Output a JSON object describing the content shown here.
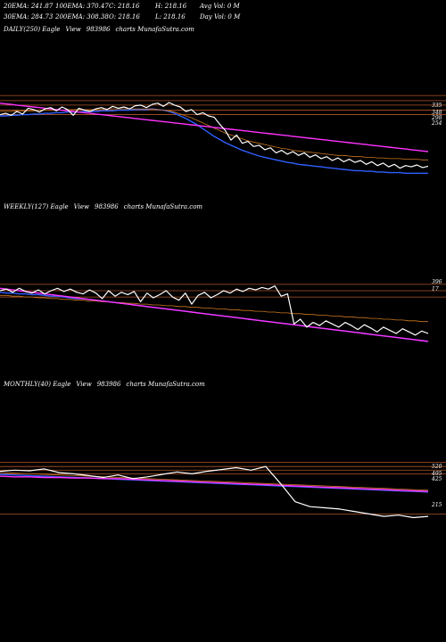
{
  "header": {
    "row1": [
      "20EMA: 241.87",
      "100EMA: 370.47",
      "C: 218.16",
      "H: 218.16",
      "Avg Vol: 0  M"
    ],
    "row2": [
      "30EMA: 284.73",
      "200EMA: 308.38",
      "O: 218.16",
      "L: 218.16",
      "Day Vol: 0  M"
    ]
  },
  "colors": {
    "price": "#ffffff",
    "ema_short": "#3060ff",
    "ema_mid": "#cc7722",
    "ema_long": "#ff33ff",
    "level": "#b0562a"
  },
  "chart_data": [
    {
      "type": "line",
      "title_parts": [
        "DAILY(250) Eagle",
        "View",
        "983986",
        "charts MunafaSutra.com"
      ],
      "y_labels": [
        "335",
        "348",
        "298",
        "254"
      ],
      "series": [
        {
          "values": [
            400,
            402,
            399,
            405,
            401,
            410,
            408,
            404,
            409,
            411,
            406,
            412,
            408,
            399,
            410,
            407,
            405,
            409,
            411,
            408,
            413,
            410,
            412,
            409,
            414,
            415,
            411,
            416,
            418,
            413,
            419,
            415,
            412,
            405,
            408,
            400,
            403,
            398,
            396,
            385,
            375,
            360,
            368,
            355,
            358,
            350,
            352,
            345,
            348,
            340,
            344,
            338,
            342,
            336,
            340,
            333,
            337,
            331,
            334,
            328,
            332,
            326,
            330,
            325,
            328,
            322,
            326,
            320,
            324,
            318,
            322,
            316,
            320,
            318,
            321,
            317,
            319
          ]
        },
        {
          "values": [
            398,
            398,
            399,
            399,
            400,
            400,
            401,
            401,
            402,
            402,
            403,
            403,
            404,
            404,
            404,
            405,
            405,
            405,
            406,
            406,
            406,
            407,
            407,
            407,
            408,
            408,
            408,
            409,
            408,
            407,
            405,
            402,
            398,
            394,
            389,
            384,
            378,
            372,
            366,
            361,
            356,
            352,
            348,
            344,
            341,
            338,
            335,
            333,
            331,
            329,
            327,
            325,
            324,
            322,
            321,
            320,
            319,
            318,
            317,
            316,
            315,
            314,
            313,
            312,
            312,
            311,
            311,
            310,
            310,
            309,
            309,
            309,
            308,
            308,
            308,
            308,
            308
          ]
        },
        {
          "values": [
            405,
            405,
            405,
            406,
            406,
            406,
            406,
            407,
            407,
            407,
            407,
            407,
            408,
            408,
            408,
            408,
            408,
            408,
            408,
            409,
            409,
            409,
            409,
            409,
            409,
            409,
            409,
            409,
            408,
            407,
            406,
            404,
            401,
            398,
            395,
            391,
            387,
            383,
            379,
            375,
            371,
            368,
            365,
            362,
            359,
            357,
            355,
            353,
            351,
            349,
            347,
            346,
            344,
            343,
            342,
            341,
            340,
            339,
            338,
            337,
            336,
            336,
            335,
            334,
            334,
            333,
            333,
            332,
            332,
            331,
            331,
            331,
            330,
            330,
            330,
            329,
            329
          ]
        },
        {
          "values": [
            418,
            417,
            416,
            415,
            414,
            413,
            412,
            411,
            410,
            409,
            408,
            407,
            406,
            405,
            404,
            403,
            402,
            401,
            400,
            399,
            398,
            397,
            396,
            395,
            394,
            393,
            392,
            391,
            390,
            389,
            388,
            387,
            386,
            385,
            384,
            383,
            382,
            381,
            380,
            379,
            378,
            377,
            376,
            375,
            374,
            373,
            372,
            371,
            370,
            369,
            368,
            367,
            366,
            365,
            364,
            363,
            362,
            361,
            360,
            359,
            358,
            357,
            356,
            355,
            354,
            353,
            352,
            351,
            350,
            349,
            348,
            347,
            346,
            345,
            344,
            343,
            342
          ]
        }
      ],
      "levels": [
        430,
        422,
        415,
        407,
        400
      ]
    },
    {
      "type": "line",
      "title_parts": [
        "WEEKLY(127) Eagle",
        "View",
        "983986",
        "charts MunafaSutra.com"
      ],
      "y_labels": [
        "396",
        "17"
      ],
      "series": [
        {
          "values": [
            412,
            414,
            410,
            415,
            411,
            409,
            413,
            408,
            412,
            415,
            411,
            414,
            410,
            408,
            413,
            409,
            402,
            412,
            405,
            410,
            407,
            411,
            398,
            409,
            403,
            407,
            412,
            404,
            400,
            409,
            395,
            406,
            410,
            403,
            407,
            412,
            409,
            414,
            411,
            415,
            413,
            416,
            414,
            418,
            405,
            408,
            370,
            376,
            366,
            372,
            368,
            374,
            370,
            366,
            372,
            368,
            363,
            369,
            365,
            360,
            366,
            362,
            358,
            364,
            360,
            356,
            361,
            358
          ]
        },
        {
          "values": [
            410,
            409,
            409,
            408,
            408,
            407,
            407,
            406,
            405,
            405,
            404,
            403,
            402,
            402,
            401,
            400,
            399,
            398,
            397,
            396,
            395,
            394,
            393,
            392,
            391,
            390,
            389,
            388,
            387,
            386,
            385,
            384,
            383,
            382,
            381,
            380,
            379,
            378,
            377,
            376,
            375,
            374,
            373,
            372,
            371,
            370,
            369,
            368,
            367,
            366,
            365,
            364,
            363,
            362,
            361,
            360,
            359,
            358,
            357,
            356,
            355,
            354,
            353,
            352,
            351,
            350,
            349,
            348
          ]
        },
        {
          "values": [
            406,
            406,
            405,
            405,
            404,
            404,
            403,
            403,
            402,
            402,
            401,
            401,
            400,
            400,
            399,
            399,
            398,
            398,
            397,
            397,
            396,
            396,
            395,
            395,
            394,
            394,
            393,
            393,
            392,
            392,
            391,
            391,
            390,
            390,
            389,
            389,
            388,
            388,
            387,
            387,
            386,
            386,
            385,
            385,
            384,
            384,
            383,
            383,
            382,
            382,
            381,
            381,
            380,
            380,
            379,
            379,
            378,
            378,
            377,
            377,
            376,
            376,
            375,
            375,
            374,
            374,
            373,
            373
          ]
        },
        {
          "values": [
            415,
            414,
            413,
            412,
            411,
            410,
            409,
            408,
            407,
            406,
            405,
            404,
            403,
            402,
            401,
            400,
            399,
            398,
            397,
            396,
            395,
            394,
            393,
            392,
            391,
            390,
            389,
            388,
            387,
            386,
            385,
            384,
            383,
            382,
            381,
            380,
            379,
            378,
            377,
            376,
            375,
            374,
            373,
            372,
            371,
            370,
            369,
            368,
            367,
            366,
            365,
            364,
            363,
            362,
            361,
            360,
            359,
            358,
            357,
            356,
            355,
            354,
            353,
            352,
            351,
            350,
            349,
            348
          ]
        }
      ],
      "levels": [
        420,
        412,
        404
      ]
    },
    {
      "type": "line",
      "title_parts": [
        "MONTHLY(40) Eagle",
        "View",
        "983986",
        "charts MunafaSutra.com"
      ],
      "y_labels": [
        "520",
        "495",
        "425",
        "215"
      ],
      "series": [
        {
          "values": [
            410,
            412,
            411,
            414,
            408,
            406,
            403,
            400,
            404,
            398,
            401,
            405,
            409,
            406,
            410,
            413,
            416,
            412,
            418,
            390,
            360,
            352,
            350,
            348,
            344,
            340,
            336,
            338,
            334,
            336
          ]
        },
        {
          "values": [
            405,
            404,
            403,
            402,
            401,
            400,
            399,
            398,
            397,
            396,
            395,
            394,
            393,
            392,
            391,
            390,
            389,
            388,
            387,
            386,
            385,
            384,
            383,
            382,
            381,
            380,
            379,
            378,
            377,
            376
          ]
        },
        {
          "values": [
            408,
            407,
            406,
            405,
            404,
            403,
            402,
            401,
            400,
            399,
            398,
            397,
            396,
            395,
            394,
            393,
            392,
            391,
            390,
            389,
            388,
            387,
            386,
            385,
            384,
            383,
            382,
            381,
            380,
            379
          ]
        },
        {
          "values": [
            402,
            401,
            401,
            400,
            400,
            399,
            399,
            398,
            398,
            397,
            396,
            395,
            394,
            393,
            392,
            391,
            390,
            389,
            388,
            387,
            386,
            385,
            384,
            383,
            382,
            381,
            380,
            379,
            378,
            377
          ]
        }
      ],
      "levels": [
        425,
        418,
        412,
        406,
        340
      ]
    }
  ]
}
